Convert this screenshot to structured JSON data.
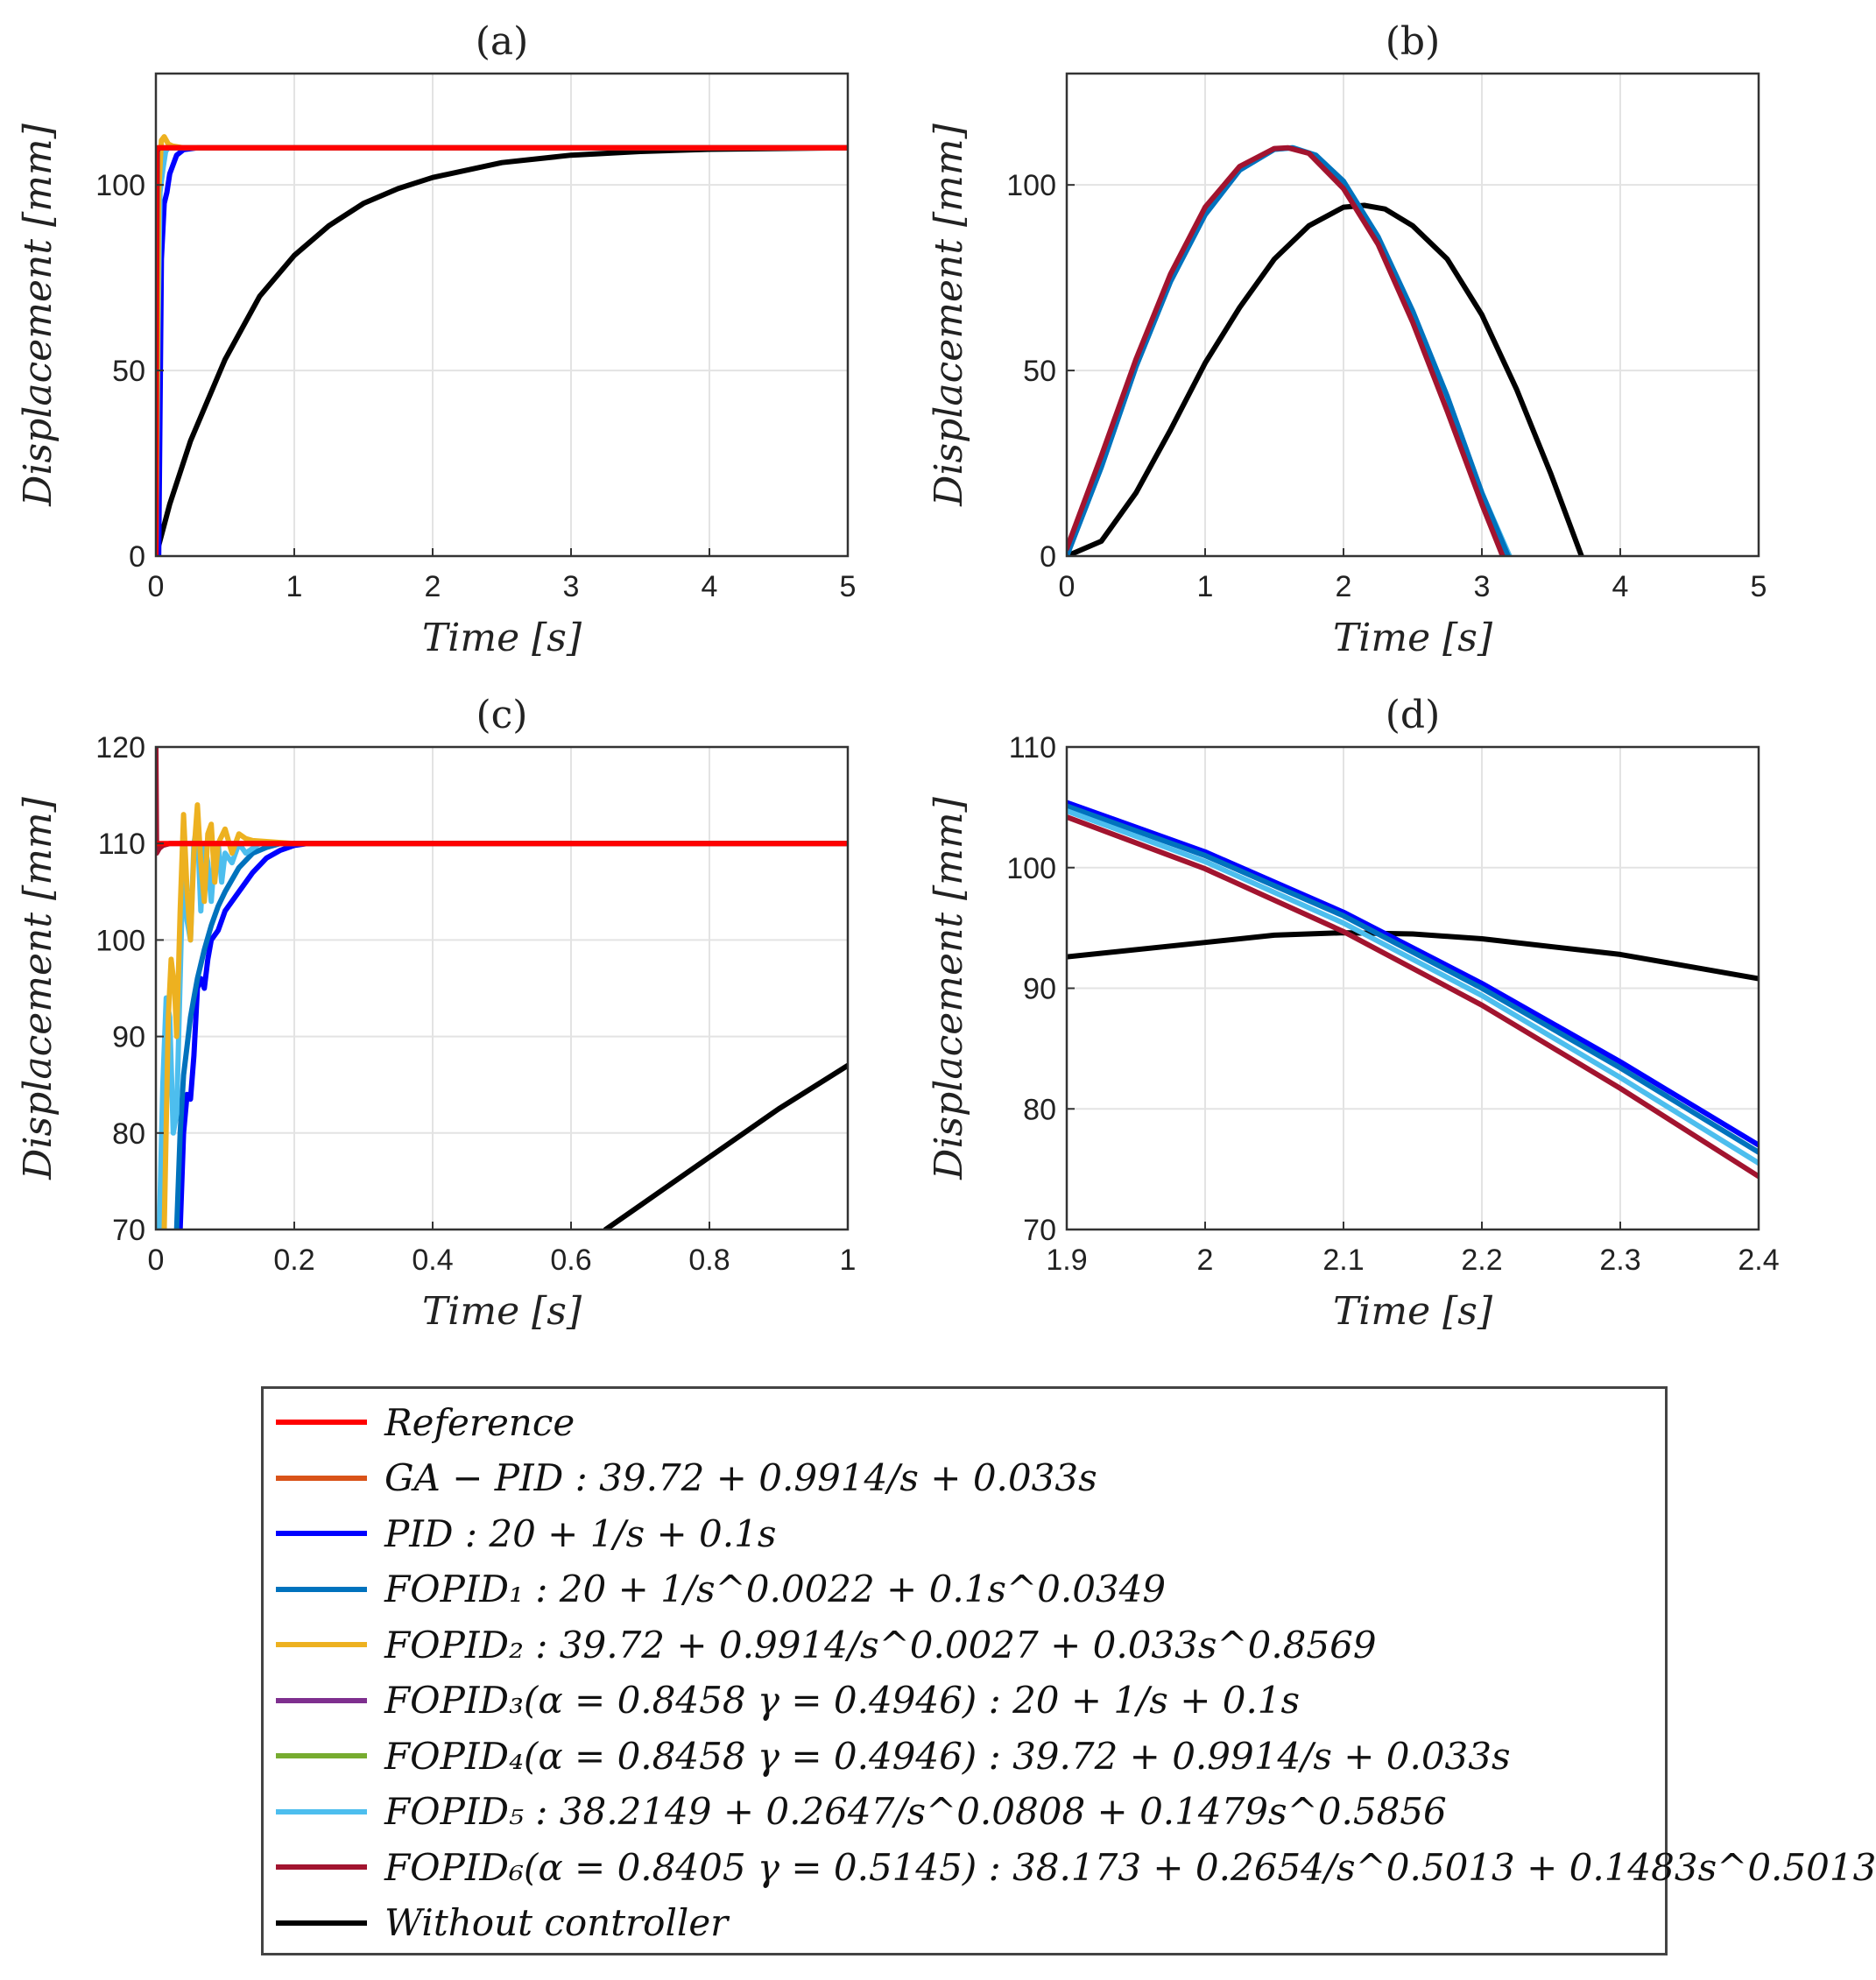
{
  "chart_data": [
    {
      "id": "a",
      "type": "line",
      "title": "(a)",
      "xlabel": "Time [s]",
      "ylabel": "Displacement [mm]",
      "xlim": [
        0,
        5
      ],
      "ylim": [
        0,
        130
      ],
      "xticks": [
        0,
        1,
        2,
        3,
        4,
        5
      ],
      "yticks": [
        0,
        50,
        100
      ],
      "xticklabels": [
        "0",
        "1",
        "2",
        "3",
        "4",
        "5"
      ],
      "yticklabels": [
        "0",
        "50",
        "100"
      ],
      "grid": true,
      "series": [
        {
          "name": "Without controller",
          "color": "#000000",
          "x": [
            0,
            0.1,
            0.25,
            0.5,
            0.75,
            1,
            1.25,
            1.5,
            1.75,
            2,
            2.5,
            3,
            3.5,
            4,
            4.5,
            5
          ],
          "y": [
            0,
            14,
            31,
            53,
            70,
            81,
            89,
            95,
            99,
            102,
            106,
            108,
            109,
            109.6,
            109.8,
            110
          ]
        },
        {
          "name": "PID",
          "color": "#0000ff",
          "x": [
            0,
            0.02,
            0.04,
            0.06,
            0.08,
            0.1,
            0.15,
            0.2,
            0.3,
            5
          ],
          "y": [
            0,
            0,
            80,
            95,
            98,
            103,
            108,
            109.5,
            110,
            110
          ]
        },
        {
          "name": "FOPID_5",
          "color": "#4dbeee",
          "x": [
            0,
            0.015,
            0.03,
            0.05,
            0.07,
            0.09,
            0.12,
            0.2,
            5
          ],
          "y": [
            0,
            60,
            98,
            104,
            109,
            110,
            110,
            110,
            110
          ]
        },
        {
          "name": "FOPID_2",
          "color": "#edb120",
          "x": [
            0,
            0.02,
            0.04,
            0.06,
            0.09,
            0.12,
            0.2,
            5
          ],
          "y": [
            0,
            98,
            112,
            113,
            111,
            110.5,
            110,
            110
          ]
        },
        {
          "name": "FOPID_6",
          "color": "#a2142f",
          "x": [
            0,
            0.005,
            0.01,
            0.02,
            5
          ],
          "y": [
            0,
            70,
            109,
            110,
            110
          ]
        },
        {
          "name": "Reference",
          "color": "#ff0000",
          "x": [
            0,
            0.001,
            5
          ],
          "y": [
            0,
            110,
            110
          ]
        }
      ]
    },
    {
      "id": "b",
      "type": "line",
      "title": "(b)",
      "xlabel": "Time [s]",
      "ylabel": "Displacement [mm]",
      "xlim": [
        0,
        5
      ],
      "ylim": [
        0,
        130
      ],
      "xticks": [
        0,
        1,
        2,
        3,
        4,
        5
      ],
      "yticks": [
        0,
        50,
        100
      ],
      "xticklabels": [
        "0",
        "1",
        "2",
        "3",
        "4",
        "5"
      ],
      "yticklabels": [
        "0",
        "50",
        "100"
      ],
      "grid": true,
      "series": [
        {
          "name": "Without controller",
          "color": "#000000",
          "x": [
            0,
            0.25,
            0.5,
            0.75,
            1,
            1.25,
            1.5,
            1.75,
            2,
            2.15,
            2.3,
            2.5,
            2.75,
            3,
            3.25,
            3.5,
            3.72
          ],
          "y": [
            0,
            4,
            17,
            34,
            52,
            67,
            80,
            89,
            94,
            94.5,
            93.5,
            89,
            80,
            65,
            45,
            22,
            0
          ]
        },
        {
          "name": "FOPID_5",
          "color": "#4dbeee",
          "x": [
            0,
            0.25,
            0.5,
            0.75,
            1,
            1.25,
            1.5,
            1.64,
            1.8,
            2,
            2.25,
            2.5,
            2.75,
            3,
            3.2
          ],
          "y": [
            0,
            24,
            51,
            74,
            92,
            104,
            109.6,
            110,
            108,
            101,
            86,
            66,
            43,
            17,
            0
          ]
        },
        {
          "name": "FOPID_1",
          "color": "#0072bd",
          "x": [
            0,
            0.25,
            0.5,
            0.75,
            1,
            1.25,
            1.5,
            1.63,
            1.8,
            2,
            2.25,
            2.5,
            2.75,
            3,
            3.19
          ],
          "y": [
            0,
            24,
            51,
            74,
            92,
            104,
            109.6,
            110,
            108,
            101,
            86,
            66,
            43,
            17,
            0
          ]
        },
        {
          "name": "FOPID_6",
          "color": "#a2142f",
          "x": [
            0,
            0.25,
            0.5,
            0.75,
            1,
            1.25,
            1.5,
            1.6,
            1.75,
            2,
            2.25,
            2.5,
            2.75,
            3,
            3.15
          ],
          "y": [
            2,
            27,
            53,
            76,
            94,
            105,
            109.8,
            110,
            108.5,
            99,
            84,
            63,
            39,
            14,
            0
          ]
        }
      ]
    },
    {
      "id": "c",
      "type": "line",
      "title": "(c)",
      "xlabel": "Time [s]",
      "ylabel": "Displacement [mm]",
      "xlim": [
        0,
        1
      ],
      "ylim": [
        70,
        120
      ],
      "xticks": [
        0,
        0.2,
        0.4,
        0.6,
        0.8,
        1
      ],
      "yticks": [
        70,
        80,
        90,
        100,
        110,
        120
      ],
      "xticklabels": [
        "0",
        "0.2",
        "0.4",
        "0.6",
        "0.8",
        "1"
      ],
      "yticklabels": [
        "70",
        "80",
        "90",
        "100",
        "110",
        "120"
      ],
      "grid": true,
      "series": [
        {
          "name": "Without controller",
          "color": "#000000",
          "x": [
            0.65,
            0.7,
            0.8,
            0.9,
            1
          ],
          "y": [
            70,
            72.5,
            77.5,
            82.5,
            87
          ]
        },
        {
          "name": "PID",
          "color": "#0000ff",
          "x": [
            0.035,
            0.04,
            0.045,
            0.05,
            0.055,
            0.06,
            0.065,
            0.07,
            0.075,
            0.08,
            0.09,
            0.1,
            0.11,
            0.12,
            0.14,
            0.16,
            0.18,
            0.2,
            0.22,
            0.3,
            1
          ],
          "y": [
            70,
            80,
            84,
            83.5,
            88,
            95,
            96,
            95,
            98,
            100,
            101,
            103,
            104,
            105,
            107,
            108.5,
            109.3,
            109.8,
            110,
            110,
            110
          ]
        },
        {
          "name": "FOPID_1",
          "color": "#0072bd",
          "x": [
            0.03,
            0.035,
            0.04,
            0.045,
            0.05,
            0.055,
            0.06,
            0.07,
            0.08,
            0.09,
            0.1,
            0.12,
            0.14,
            0.16,
            0.18,
            0.2,
            0.25,
            1
          ],
          "y": [
            70,
            80,
            86,
            89,
            92,
            94,
            96,
            99,
            101.5,
            103.5,
            105,
            107.5,
            109,
            109.6,
            110,
            110,
            110,
            110
          ]
        },
        {
          "name": "FOPID_5",
          "color": "#4dbeee",
          "x": [
            0.005,
            0.01,
            0.015,
            0.02,
            0.025,
            0.03,
            0.035,
            0.04,
            0.045,
            0.05,
            0.055,
            0.06,
            0.065,
            0.07,
            0.075,
            0.08,
            0.085,
            0.09,
            0.095,
            0.1,
            0.11,
            0.12,
            0.13,
            0.15,
            0.2,
            1
          ],
          "y": [
            70,
            85,
            94,
            92,
            80,
            82,
            96,
            110,
            102,
            100,
            110,
            112,
            103,
            110,
            108,
            104,
            109,
            110,
            106,
            109,
            108,
            110,
            109,
            110,
            110,
            110
          ]
        },
        {
          "name": "FOPID_2",
          "color": "#edb120",
          "x": [
            0.012,
            0.018,
            0.022,
            0.027,
            0.03,
            0.035,
            0.04,
            0.045,
            0.05,
            0.055,
            0.06,
            0.065,
            0.07,
            0.075,
            0.08,
            0.085,
            0.09,
            0.1,
            0.11,
            0.12,
            0.13,
            0.14,
            0.16,
            0.2,
            1
          ],
          "y": [
            70,
            92,
            98,
            95,
            90,
            103,
            113,
            105,
            100,
            109,
            114,
            108,
            104,
            111,
            112,
            106,
            110,
            111.5,
            109,
            111,
            110.5,
            110.3,
            110.2,
            110,
            110
          ]
        },
        {
          "name": "FOPID_6",
          "color": "#a2142f",
          "x": [
            0,
            0.001,
            0.005,
            0.01,
            0.02,
            1
          ],
          "y": [
            120,
            109,
            109.5,
            109.8,
            110,
            110
          ]
        },
        {
          "name": "Reference",
          "color": "#ff0000",
          "x": [
            0,
            1
          ],
          "y": [
            110,
            110
          ]
        }
      ]
    },
    {
      "id": "d",
      "type": "line",
      "title": "(d)",
      "xlabel": "Time [s]",
      "ylabel": "Displacement [mm]",
      "xlim": [
        1.9,
        2.4
      ],
      "ylim": [
        70,
        110
      ],
      "xticks": [
        1.9,
        2,
        2.1,
        2.2,
        2.3,
        2.4
      ],
      "yticks": [
        70,
        80,
        90,
        100,
        110
      ],
      "xticklabels": [
        "1.9",
        "2",
        "2.1",
        "2.2",
        "2.3",
        "2.4"
      ],
      "yticklabels": [
        "70",
        "80",
        "90",
        "100",
        "110"
      ],
      "grid": true,
      "series": [
        {
          "name": "Without controller",
          "color": "#000000",
          "x": [
            1.9,
            2.0,
            2.05,
            2.1,
            2.15,
            2.2,
            2.3,
            2.4
          ],
          "y": [
            92.6,
            93.8,
            94.4,
            94.6,
            94.5,
            94.1,
            92.8,
            90.8
          ]
        },
        {
          "name": "PID",
          "color": "#0000ff",
          "x": [
            1.9,
            2.0,
            2.1,
            2.2,
            2.3,
            2.4
          ],
          "y": [
            105.4,
            101.3,
            96.3,
            90.4,
            83.9,
            77.0
          ]
        },
        {
          "name": "FOPID_1",
          "color": "#0072bd",
          "x": [
            1.9,
            2.0,
            2.1,
            2.2,
            2.3,
            2.4
          ],
          "y": [
            105.1,
            101.0,
            96.0,
            90.0,
            83.4,
            76.4
          ]
        },
        {
          "name": "FOPID_5",
          "color": "#4dbeee",
          "x": [
            1.9,
            2.0,
            2.1,
            2.2,
            2.3,
            2.4
          ],
          "y": [
            104.7,
            100.5,
            95.4,
            89.4,
            82.6,
            75.5
          ]
        },
        {
          "name": "FOPID_6",
          "color": "#a2142f",
          "x": [
            1.9,
            2.0,
            2.1,
            2.2,
            2.3,
            2.4
          ],
          "y": [
            104.2,
            99.9,
            94.7,
            88.6,
            81.7,
            74.4
          ]
        }
      ]
    }
  ],
  "legend": [
    {
      "label": "Reference",
      "color": "#ff0000"
    },
    {
      "label": "GA − PID : 39.72 + 0.9914/s + 0.033s",
      "color": "#d95319"
    },
    {
      "label": "PID : 20 + 1/s + 0.1s",
      "color": "#0000ff"
    },
    {
      "label": "FOPID₁ : 20 + 1/s^0.0022 + 0.1s^0.0349",
      "color": "#0072bd"
    },
    {
      "label": "FOPID₂ : 39.72 + 0.9914/s^0.0027 + 0.033s^0.8569",
      "color": "#edb120"
    },
    {
      "label": "FOPID₃(α = 0.8458 γ = 0.4946) : 20 + 1/s + 0.1s",
      "color": "#7e2f8e"
    },
    {
      "label": "FOPID₄(α = 0.8458 γ = 0.4946) : 39.72 + 0.9914/s + 0.033s",
      "color": "#77ac30"
    },
    {
      "label": "FOPID₅ : 38.2149 + 0.2647/s^0.0808 + 0.1479s^0.5856",
      "color": "#4dbeee"
    },
    {
      "label": "FOPID₆(α = 0.8405 γ = 0.5145) : 38.173 + 0.2654/s^0.5013 + 0.1483s^0.5013",
      "color": "#a2142f"
    },
    {
      "label": "Without controller",
      "color": "#000000"
    }
  ]
}
